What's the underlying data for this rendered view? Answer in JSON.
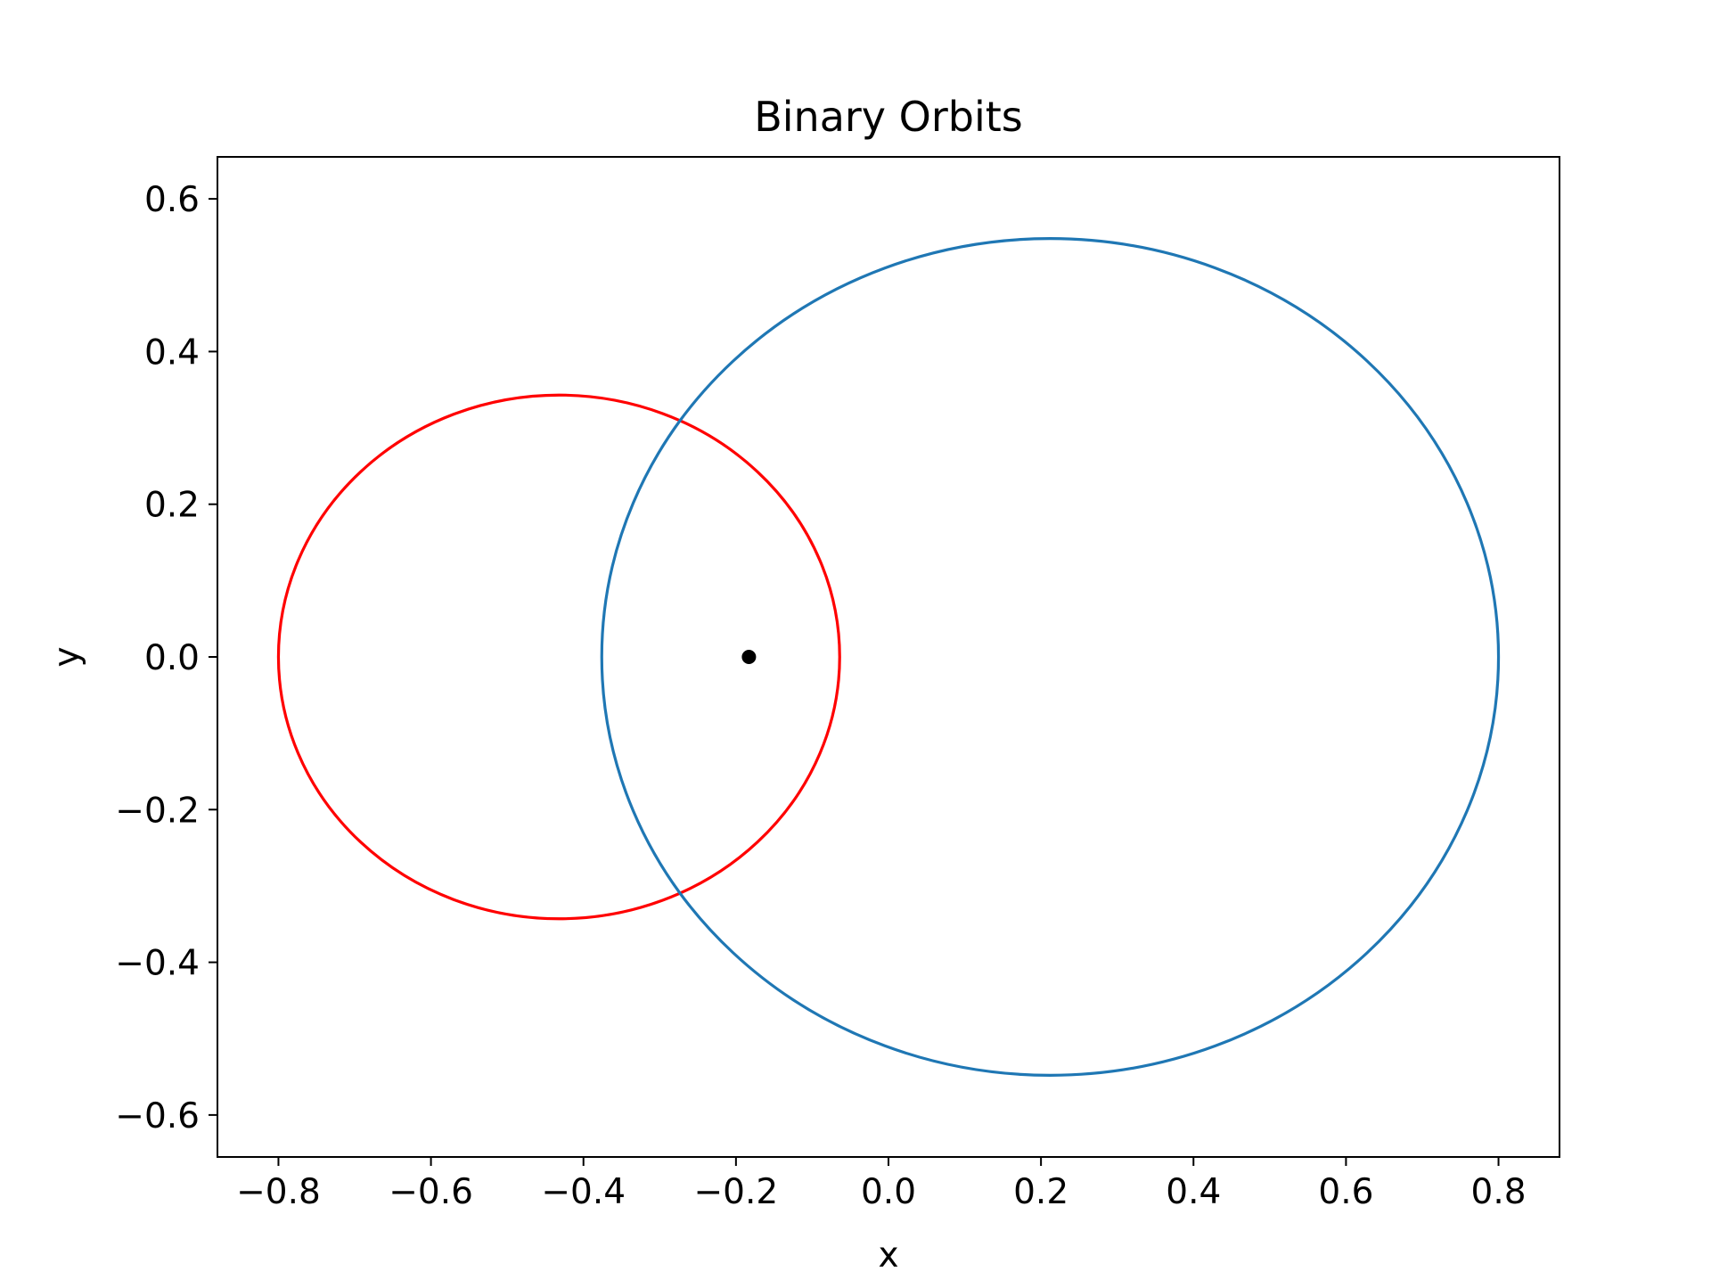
{
  "chart_data": {
    "type": "line",
    "title": "Binary Orbits",
    "xlabel": "x",
    "ylabel": "y",
    "xlim": [
      -0.88,
      0.88
    ],
    "ylim": [
      -0.655,
      0.655
    ],
    "xticks": [
      -0.8,
      -0.6,
      -0.4,
      -0.2,
      0.0,
      0.2,
      0.4,
      0.6,
      0.8
    ],
    "xtick_labels": [
      "−0.8",
      "−0.6",
      "−0.4",
      "−0.2",
      "0.0",
      "0.2",
      "0.4",
      "0.6",
      "0.8"
    ],
    "yticks": [
      -0.6,
      -0.4,
      -0.2,
      0.0,
      0.2,
      0.4,
      0.6
    ],
    "ytick_labels": [
      "−0.6",
      "−0.4",
      "−0.2",
      "0.0",
      "0.2",
      "0.4",
      "0.6"
    ],
    "grid": false,
    "series": [
      {
        "kind": "ellipse",
        "color": "#ff0000",
        "center": [
          -0.432,
          0.0
        ],
        "semi_x": 0.368,
        "semi_y": 0.343
      },
      {
        "kind": "ellipse",
        "color": "#1f77b4",
        "center": [
          0.212,
          0.0
        ],
        "semi_x": 0.588,
        "semi_y": 0.548
      },
      {
        "kind": "point",
        "color": "#000000",
        "x": -0.183,
        "y": 0.0
      }
    ]
  }
}
